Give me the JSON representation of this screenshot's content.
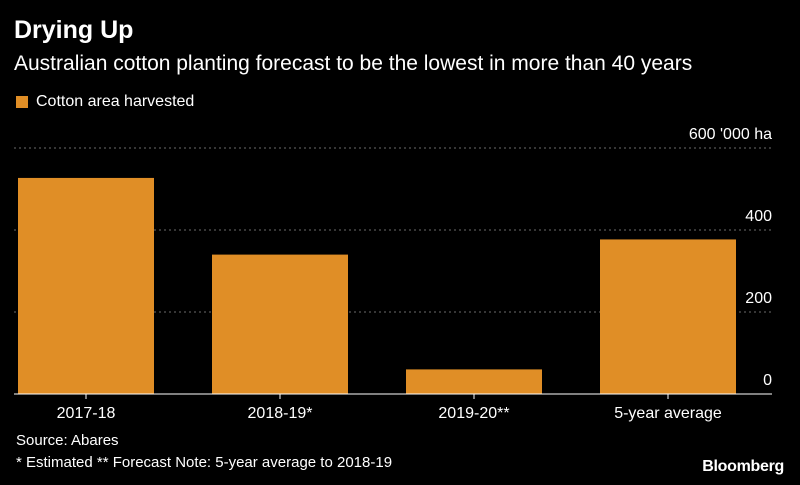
{
  "header": {
    "title": "Drying Up",
    "subtitle": "Australian cotton planting forecast to be the lowest in more than 40 years"
  },
  "legend": {
    "label": "Cotton area harvested"
  },
  "footer": {
    "source": "Source: Abares",
    "note": "* Estimated ** Forecast Note: 5-year average to 2018-19",
    "brand": "Bloomberg"
  },
  "colors": {
    "bar": "#e08e26",
    "background": "#000000",
    "text": "#ffffff",
    "grid": "#6b6b6b"
  },
  "chart_data": {
    "type": "bar",
    "categories": [
      "2017-18",
      "2018-19*",
      "2019-20**",
      "5-year average"
    ],
    "values": [
      527,
      340,
      60,
      377
    ],
    "series": [
      {
        "name": "Cotton area harvested",
        "values": [
          527,
          340,
          60,
          377
        ]
      }
    ],
    "ylim": [
      0,
      600
    ],
    "yticks": [
      0,
      200,
      400,
      600
    ],
    "ytick_labels": [
      "0",
      "200",
      "400",
      "600 '000 ha"
    ],
    "grid": true,
    "legend_position": "top-left"
  }
}
